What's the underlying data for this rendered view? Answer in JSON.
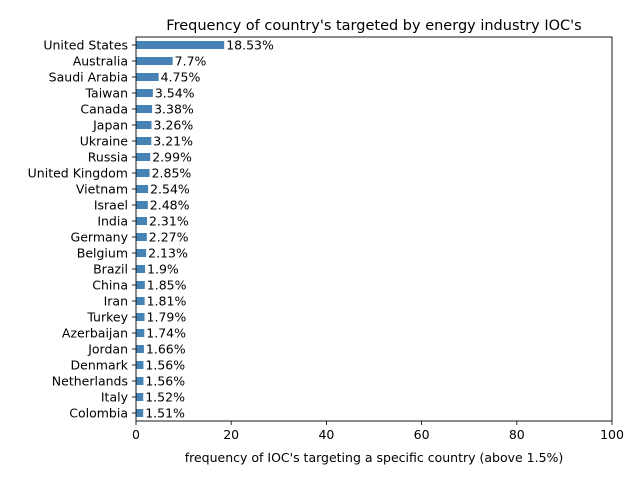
{
  "chart_data": {
    "type": "bar",
    "orientation": "horizontal",
    "title": "Frequency of country's targeted by energy industry IOC's",
    "xlabel": "frequency of IOC's targeting a specific country (above 1.5%)",
    "ylabel": "",
    "xlim": [
      0,
      100
    ],
    "x_ticks": [
      0,
      20,
      40,
      60,
      80,
      100
    ],
    "grid": false,
    "legend": "none",
    "bar_color": "#4682b4",
    "categories": [
      "United States",
      "Australia",
      "Saudi Arabia",
      "Taiwan",
      "Canada",
      "Japan",
      "Ukraine",
      "Russia",
      "United Kingdom",
      "Vietnam",
      "Israel",
      "India",
      "Germany",
      "Belgium",
      "Brazil",
      "China",
      "Iran",
      "Turkey",
      "Azerbaijan",
      "Jordan",
      "Denmark",
      "Netherlands",
      "Italy",
      "Colombia"
    ],
    "values": [
      18.53,
      7.7,
      4.75,
      3.54,
      3.38,
      3.26,
      3.21,
      2.99,
      2.85,
      2.54,
      2.48,
      2.31,
      2.27,
      2.13,
      1.9,
      1.85,
      1.81,
      1.79,
      1.74,
      1.66,
      1.56,
      1.56,
      1.52,
      1.51
    ],
    "data_labels": [
      "18.53%",
      "7.7%",
      "4.75%",
      "3.54%",
      "3.38%",
      "3.26%",
      "3.21%",
      "2.99%",
      "2.85%",
      "2.54%",
      "2.48%",
      "2.31%",
      "2.27%",
      "2.13%",
      "1.9%",
      "1.85%",
      "1.81%",
      "1.79%",
      "1.74%",
      "1.66%",
      "1.56%",
      "1.56%",
      "1.52%",
      "1.51%"
    ]
  }
}
